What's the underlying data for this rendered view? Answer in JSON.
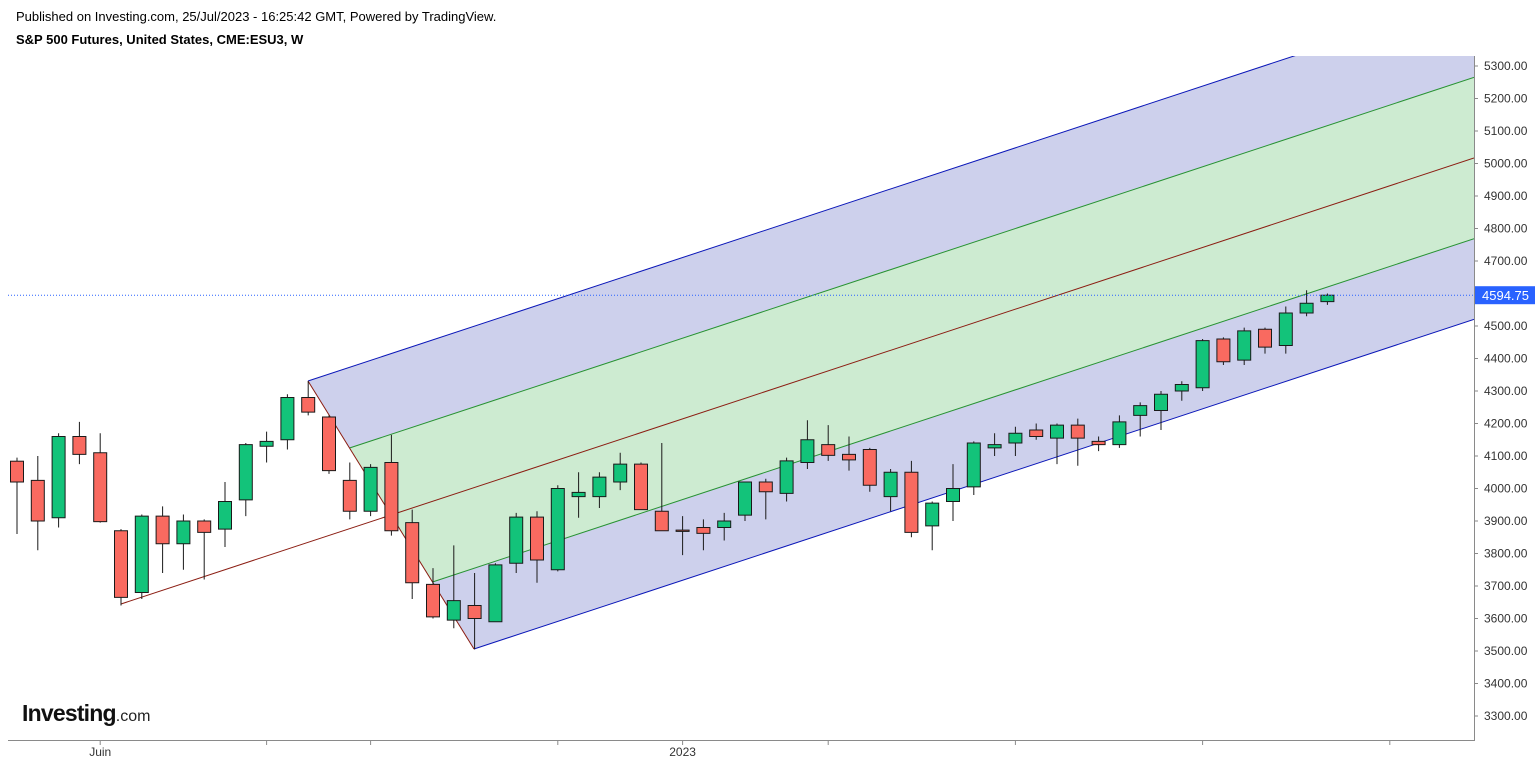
{
  "header": {
    "published": "Published on Investing.com, 25/Jul/2023 - 16:25:42 GMT, Powered by TradingView.",
    "symbol": "S&P 500 Futures, United States, CME:ESU3, W"
  },
  "logo": {
    "main": "Investing",
    "suffix": ".com"
  },
  "colors": {
    "up": "#13c37a",
    "down": "#f96a60",
    "outer_band": "#cdd0ec",
    "inner_band": "#cdebd1",
    "outer_line": "#0a16b8",
    "inner_line": "#279232",
    "median": "#8b1d12",
    "price_line": "#2962ff"
  },
  "chart_data": {
    "type": "candlestick",
    "timeframe": "W",
    "ylim": [
      3210,
      5330
    ],
    "y_ticks": [
      "5300.00",
      "5200.00",
      "5100.00",
      "5000.00",
      "4900.00",
      "4800.00",
      "4700.00",
      "4600.00",
      "4500.00",
      "4400.00",
      "4300.00",
      "4200.00",
      "4100.00",
      "4000.00",
      "3900.00",
      "3800.00",
      "3700.00",
      "3600.00",
      "3500.00",
      "3400.00",
      "3300.00"
    ],
    "x_labels": [
      {
        "index": 4,
        "label": "Juin"
      },
      {
        "index": 32,
        "label": "2023"
      }
    ],
    "x_ticks": [
      4,
      12,
      17,
      26,
      32,
      39,
      48,
      57,
      66
    ],
    "last_price": "4594.75",
    "candles": [
      {
        "o": 4084,
        "h": 4095,
        "l": 3860,
        "c": 4020
      },
      {
        "o": 4025,
        "h": 4100,
        "l": 3810,
        "c": 3900
      },
      {
        "o": 3910,
        "h": 4170,
        "l": 3880,
        "c": 4160
      },
      {
        "o": 4160,
        "h": 4205,
        "l": 4075,
        "c": 4105
      },
      {
        "o": 4110,
        "h": 4170,
        "l": 3895,
        "c": 3898
      },
      {
        "o": 3870,
        "h": 3875,
        "l": 3640,
        "c": 3665
      },
      {
        "o": 3680,
        "h": 3920,
        "l": 3660,
        "c": 3915
      },
      {
        "o": 3915,
        "h": 3945,
        "l": 3740,
        "c": 3830
      },
      {
        "o": 3830,
        "h": 3920,
        "l": 3750,
        "c": 3900
      },
      {
        "o": 3900,
        "h": 3905,
        "l": 3720,
        "c": 3865
      },
      {
        "o": 3875,
        "h": 4020,
        "l": 3820,
        "c": 3960
      },
      {
        "o": 3965,
        "h": 4140,
        "l": 3915,
        "c": 4135
      },
      {
        "o": 4130,
        "h": 4175,
        "l": 4080,
        "c": 4145
      },
      {
        "o": 4150,
        "h": 4290,
        "l": 4120,
        "c": 4280
      },
      {
        "o": 4280,
        "h": 4330,
        "l": 4225,
        "c": 4235
      },
      {
        "o": 4220,
        "h": 4225,
        "l": 4045,
        "c": 4055
      },
      {
        "o": 4025,
        "h": 4080,
        "l": 3905,
        "c": 3930
      },
      {
        "o": 3930,
        "h": 4075,
        "l": 3915,
        "c": 4065
      },
      {
        "o": 4080,
        "h": 4165,
        "l": 3855,
        "c": 3870
      },
      {
        "o": 3895,
        "h": 3935,
        "l": 3660,
        "c": 3710
      },
      {
        "o": 3705,
        "h": 3755,
        "l": 3600,
        "c": 3605
      },
      {
        "o": 3595,
        "h": 3825,
        "l": 3570,
        "c": 3655
      },
      {
        "o": 3640,
        "h": 3740,
        "l": 3505,
        "c": 3600
      },
      {
        "o": 3590,
        "h": 3770,
        "l": 3590,
        "c": 3765
      },
      {
        "o": 3770,
        "h": 3925,
        "l": 3740,
        "c": 3912
      },
      {
        "o": 3912,
        "h": 3930,
        "l": 3710,
        "c": 3780
      },
      {
        "o": 3750,
        "h": 4010,
        "l": 3745,
        "c": 4000
      },
      {
        "o": 3975,
        "h": 4050,
        "l": 3910,
        "c": 3988
      },
      {
        "o": 3975,
        "h": 4050,
        "l": 3940,
        "c": 4035
      },
      {
        "o": 4020,
        "h": 4110,
        "l": 3995,
        "c": 4075
      },
      {
        "o": 4075,
        "h": 4080,
        "l": 3940,
        "c": 3935
      },
      {
        "o": 3930,
        "h": 4140,
        "l": 3870,
        "c": 3870
      },
      {
        "o": 3872,
        "h": 3915,
        "l": 3795,
        "c": 3868
      },
      {
        "o": 3880,
        "h": 3905,
        "l": 3810,
        "c": 3862
      },
      {
        "o": 3880,
        "h": 3925,
        "l": 3840,
        "c": 3900
      },
      {
        "o": 3918,
        "h": 4000,
        "l": 3900,
        "c": 4020
      },
      {
        "o": 4020,
        "h": 4030,
        "l": 3905,
        "c": 3990
      },
      {
        "o": 3985,
        "h": 4095,
        "l": 3960,
        "c": 4085
      },
      {
        "o": 4080,
        "h": 4210,
        "l": 4060,
        "c": 4150
      },
      {
        "o": 4135,
        "h": 4195,
        "l": 4085,
        "c": 4102
      },
      {
        "o": 4105,
        "h": 4160,
        "l": 4055,
        "c": 4088
      },
      {
        "o": 4120,
        "h": 4125,
        "l": 3990,
        "c": 4010
      },
      {
        "o": 3975,
        "h": 4060,
        "l": 3930,
        "c": 4050
      },
      {
        "o": 4050,
        "h": 4085,
        "l": 3850,
        "c": 3865
      },
      {
        "o": 3885,
        "h": 3960,
        "l": 3810,
        "c": 3955
      },
      {
        "o": 3960,
        "h": 4075,
        "l": 3900,
        "c": 4000
      },
      {
        "o": 4005,
        "h": 4145,
        "l": 3980,
        "c": 4140
      },
      {
        "o": 4125,
        "h": 4170,
        "l": 4100,
        "c": 4135
      },
      {
        "o": 4140,
        "h": 4190,
        "l": 4100,
        "c": 4170
      },
      {
        "o": 4180,
        "h": 4200,
        "l": 4150,
        "c": 4160
      },
      {
        "o": 4155,
        "h": 4200,
        "l": 4075,
        "c": 4195
      },
      {
        "o": 4195,
        "h": 4215,
        "l": 4070,
        "c": 4155
      },
      {
        "o": 4145,
        "h": 4160,
        "l": 4115,
        "c": 4135
      },
      {
        "o": 4135,
        "h": 4225,
        "l": 4125,
        "c": 4205
      },
      {
        "o": 4225,
        "h": 4265,
        "l": 4160,
        "c": 4255
      },
      {
        "o": 4240,
        "h": 4300,
        "l": 4180,
        "c": 4290
      },
      {
        "o": 4300,
        "h": 4330,
        "l": 4270,
        "c": 4320
      },
      {
        "o": 4310,
        "h": 4460,
        "l": 4300,
        "c": 4455
      },
      {
        "o": 4460,
        "h": 4465,
        "l": 4380,
        "c": 4390
      },
      {
        "o": 4395,
        "h": 4495,
        "l": 4380,
        "c": 4485
      },
      {
        "o": 4490,
        "h": 4495,
        "l": 4415,
        "c": 4435
      },
      {
        "o": 4440,
        "h": 4560,
        "l": 4415,
        "c": 4540
      },
      {
        "o": 4540,
        "h": 4610,
        "l": 4530,
        "c": 4570
      },
      {
        "o": 4575,
        "h": 4600,
        "l": 4565,
        "c": 4594.75
      }
    ]
  }
}
